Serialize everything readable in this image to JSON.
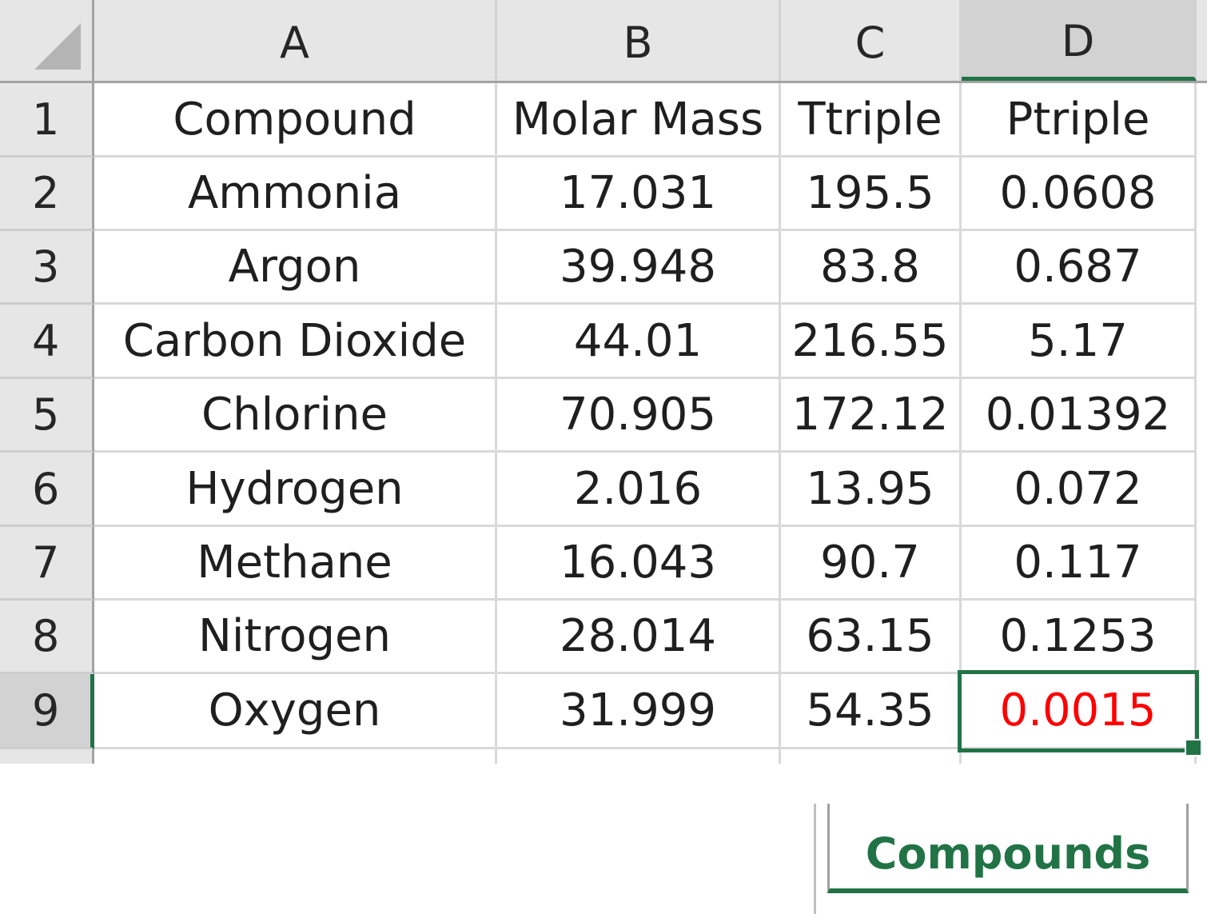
{
  "columns": [
    "A",
    "B",
    "C",
    "D"
  ],
  "selected_column": "D",
  "rows": [
    {
      "num": "1",
      "cells": [
        "Compound",
        "Molar Mass",
        "Ttriple",
        "Ptriple"
      ]
    },
    {
      "num": "2",
      "cells": [
        "Ammonia",
        "17.031",
        "195.5",
        "0.0608"
      ]
    },
    {
      "num": "3",
      "cells": [
        "Argon",
        "39.948",
        "83.8",
        "0.687"
      ]
    },
    {
      "num": "4",
      "cells": [
        "Carbon Dioxide",
        "44.01",
        "216.55",
        "5.17"
      ]
    },
    {
      "num": "5",
      "cells": [
        "Chlorine",
        "70.905",
        "172.12",
        "0.01392"
      ]
    },
    {
      "num": "6",
      "cells": [
        "Hydrogen",
        "2.016",
        "13.95",
        "0.072"
      ]
    },
    {
      "num": "7",
      "cells": [
        "Methane",
        "16.043",
        "90.7",
        "0.117"
      ]
    },
    {
      "num": "8",
      "cells": [
        "Nitrogen",
        "28.014",
        "63.15",
        "0.1253"
      ]
    },
    {
      "num": "9",
      "cells": [
        "Oxygen",
        "31.999",
        "54.35",
        "0.0015"
      ]
    }
  ],
  "active_cell": {
    "ref": "D9",
    "font_color": "#ff0000"
  },
  "sheet_tab": {
    "label": "Compounds"
  },
  "colors": {
    "accent": "#217346",
    "header_bg": "#e6e6e6",
    "gridline": "#d9d9d9"
  }
}
